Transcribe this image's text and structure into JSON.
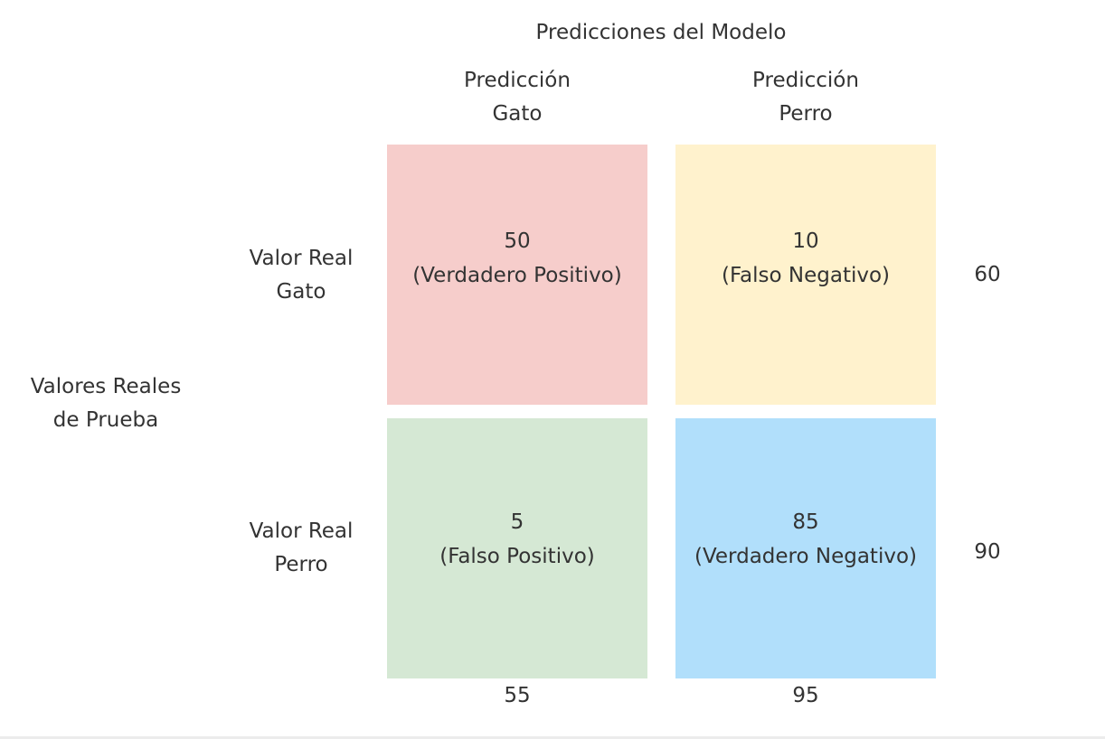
{
  "header": {
    "title": "Predicciones del Modelo"
  },
  "columns": [
    {
      "line1": "Predicción",
      "line2": "Gato"
    },
    {
      "line1": "Predicción",
      "line2": "Perro"
    }
  ],
  "axis_row_label": {
    "line1": "Valores Reales",
    "line2": "de Prueba"
  },
  "rows": [
    {
      "line1": "Valor Real",
      "line2": "Gato",
      "total": "60"
    },
    {
      "line1": "Valor Real",
      "line2": "Perro",
      "total": "90"
    }
  ],
  "cells": [
    {
      "value": "50",
      "label": "(Verdadero Positivo)",
      "color": "#f6cdcb"
    },
    {
      "value": "10",
      "label": "(Falso Negativo)",
      "color": "#fff2cd"
    },
    {
      "value": "5",
      "label": "(Falso Positivo)",
      "color": "#d5e8d4"
    },
    {
      "value": "85",
      "label": "(Verdadero Negativo)",
      "color": "#b1dffb"
    }
  ],
  "column_totals": [
    "55",
    "95"
  ]
}
